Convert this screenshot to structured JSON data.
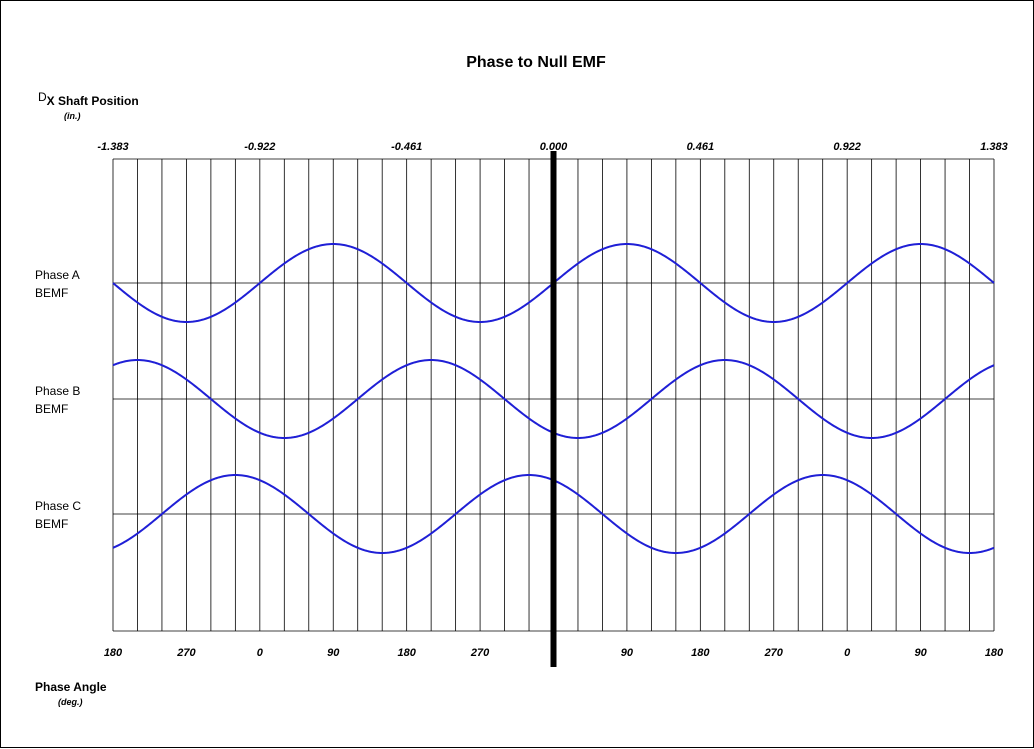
{
  "chart_data": {
    "type": "line",
    "title": "Phase to Null EMF",
    "top_axis": {
      "label_prefix": "D",
      "label": "X Shaft Position",
      "unit": "(in.)",
      "tick_labels": [
        "-1.383",
        "-0.922",
        "-0.461",
        "0.000",
        "0.461",
        "0.922",
        "1.383"
      ],
      "range": [
        -1.383,
        1.383
      ]
    },
    "bottom_axis": {
      "label": "Phase Angle",
      "unit": "(deg.)",
      "tick_labels": [
        "180",
        "270",
        "0",
        "90",
        "180",
        "270",
        "0",
        "90",
        "180",
        "270",
        "0",
        "90",
        "180"
      ],
      "range_deg": [
        -540,
        540
      ]
    },
    "null_line_deg": 0,
    "grid": true,
    "grid_minor_step_deg": 30,
    "series": [
      {
        "name_line1": "Phase A",
        "name_line2": "BEMF",
        "phase_offset_deg": 0,
        "color": "#1f1fd6"
      },
      {
        "name_line1": "Phase B",
        "name_line2": "BEMF",
        "phase_offset_deg": -120,
        "color": "#1f1fd6"
      },
      {
        "name_line1": "Phase C",
        "name_line2": "BEMF",
        "phase_offset_deg": 120,
        "color": "#1f1fd6"
      }
    ]
  }
}
